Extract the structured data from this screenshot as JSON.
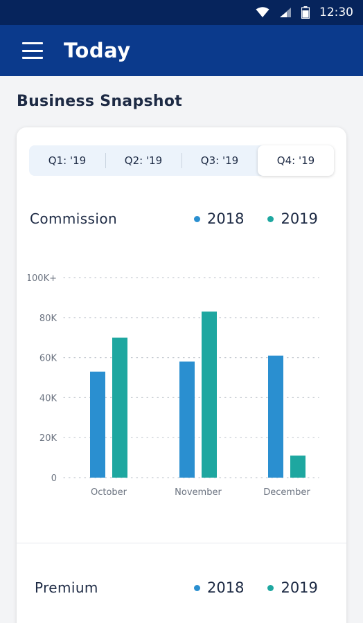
{
  "status_bar": {
    "time": "12:30"
  },
  "app_bar": {
    "title": "Today"
  },
  "section": {
    "title": "Business Snapshot"
  },
  "tabs": [
    {
      "label": "Q1: '19",
      "active": false
    },
    {
      "label": "Q2: '19",
      "active": false
    },
    {
      "label": "Q3: '19",
      "active": false
    },
    {
      "label": "Q4: '19",
      "active": true
    }
  ],
  "commission": {
    "title": "Commission",
    "legend": [
      {
        "label": "2018",
        "color": "#2a8fd0"
      },
      {
        "label": "2019",
        "color": "#1ea7a0"
      }
    ]
  },
  "premium": {
    "title": "Premium",
    "legend": [
      {
        "label": "2018",
        "color": "#2a8fd0"
      },
      {
        "label": "2019",
        "color": "#1ea7a0"
      }
    ]
  },
  "chart_data": {
    "type": "bar",
    "title": "Commission",
    "categories": [
      "October",
      "November",
      "December"
    ],
    "series": [
      {
        "name": "2018",
        "values": [
          53000,
          58000,
          61000
        ],
        "color": "#2a8fd0"
      },
      {
        "name": "2019",
        "values": [
          70000,
          83000,
          11000
        ],
        "color": "#1ea7a0"
      }
    ],
    "yticks": [
      {
        "value": 0,
        "label": "0"
      },
      {
        "value": 20000,
        "label": "20K"
      },
      {
        "value": 40000,
        "label": "40K"
      },
      {
        "value": 60000,
        "label": "60K"
      },
      {
        "value": 80000,
        "label": "80K"
      },
      {
        "value": 100000,
        "label": "100K+"
      }
    ],
    "ylim": [
      0,
      100000
    ],
    "grid": true,
    "legend_position": "top-right"
  }
}
